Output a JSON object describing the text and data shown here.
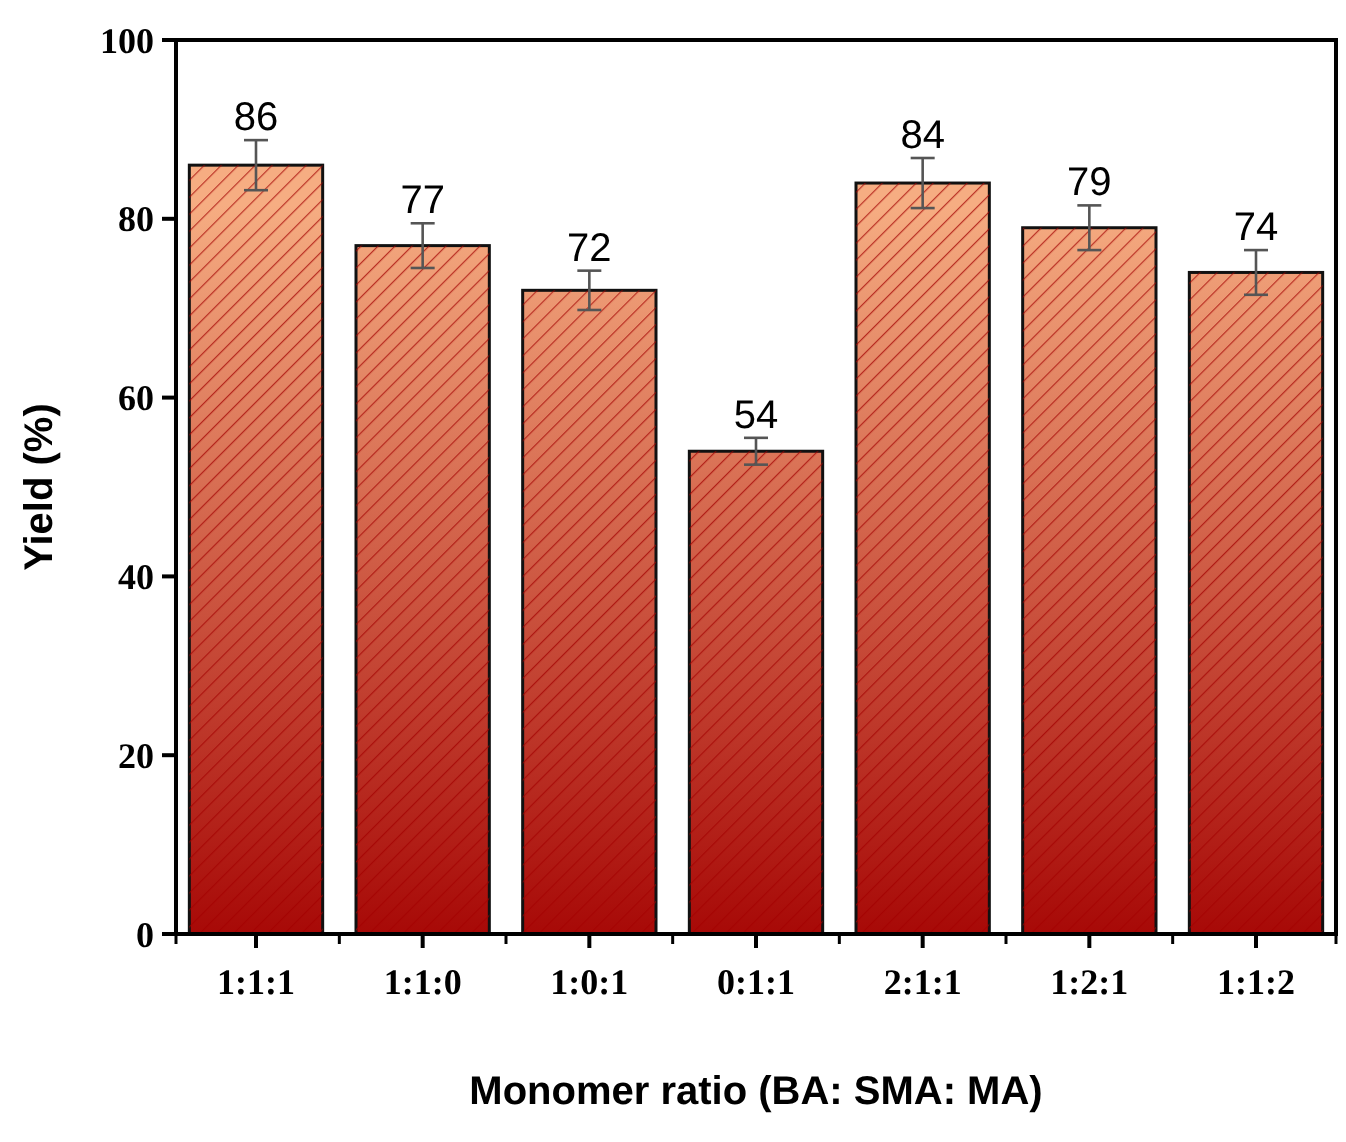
{
  "chart_data": {
    "type": "bar",
    "xlabel": "Monomer ratio (BA: SMA: MA)",
    "ylabel": "Yield (%)",
    "categories": [
      "1:1:1",
      "1:1:0",
      "1:0:1",
      "0:1:1",
      "2:1:1",
      "1:2:1",
      "1:1:2"
    ],
    "values": [
      86,
      77,
      72,
      54,
      84,
      79,
      74
    ],
    "errors": [
      2.8,
      2.5,
      2.2,
      1.5,
      2.8,
      2.5,
      2.5
    ],
    "color": "#a30000",
    "ylim": [
      0,
      100
    ],
    "yticks": [
      0,
      20,
      40,
      60,
      80,
      100
    ],
    "data_labels": true,
    "grid": false
  }
}
